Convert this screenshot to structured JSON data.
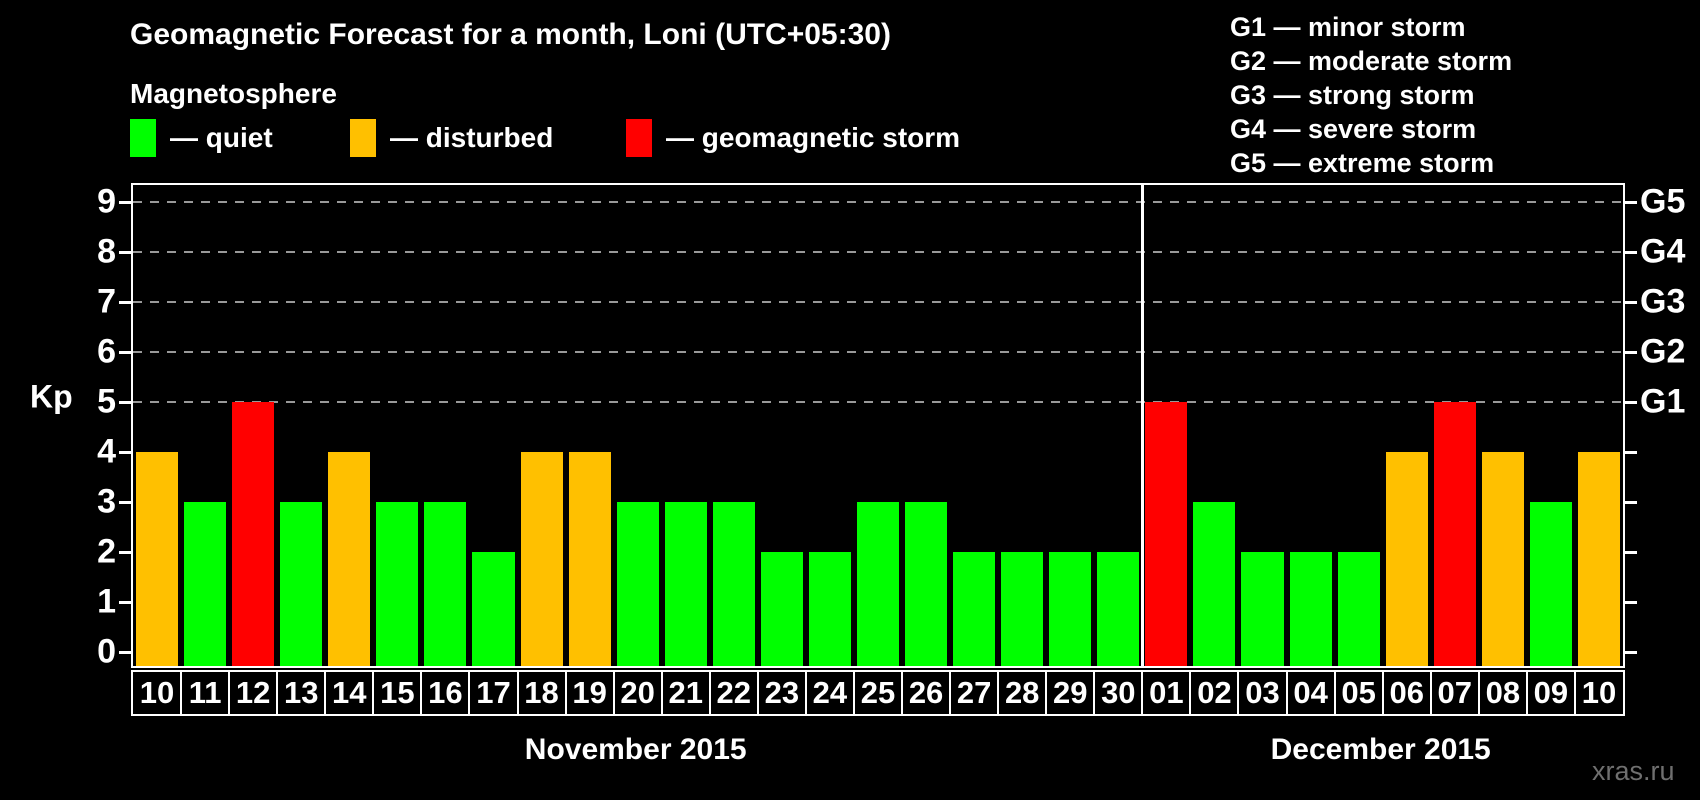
{
  "title": "Geomagnetic Forecast for a month, Loni (UTC+05:30)",
  "subtitle": "Magnetosphere",
  "legend": {
    "items": [
      {
        "label": "— quiet",
        "status": "quiet",
        "color": "#00FF00"
      },
      {
        "label": "— disturbed",
        "status": "disturbed",
        "color": "#FFC000"
      },
      {
        "label": "— geomagnetic storm",
        "status": "storm",
        "color": "#FF0000"
      }
    ]
  },
  "storm_scale_legend": [
    "G1 — minor storm",
    "G2 — moderate storm",
    "G3 — strong storm",
    "G4 — severe storm",
    "G5 — extreme storm"
  ],
  "watermark": "xras.ru",
  "chart_data": {
    "type": "bar",
    "ylabel": "Kp",
    "ylim": [
      0,
      9
    ],
    "y_ticks": [
      0,
      1,
      2,
      3,
      4,
      5,
      6,
      7,
      8,
      9
    ],
    "gridlines_at": [
      5,
      6,
      7,
      8,
      9
    ],
    "right_axis_labels": [
      {
        "label": "G1",
        "level": 5
      },
      {
        "label": "G2",
        "level": 6
      },
      {
        "label": "G3",
        "level": 7
      },
      {
        "label": "G4",
        "level": 8
      },
      {
        "label": "G5",
        "level": 9
      }
    ],
    "months": [
      {
        "label": "November 2015",
        "days": 21
      },
      {
        "label": "December 2015",
        "days": 10
      }
    ],
    "categories": [
      "10",
      "11",
      "12",
      "13",
      "14",
      "15",
      "16",
      "17",
      "18",
      "19",
      "20",
      "21",
      "22",
      "23",
      "24",
      "25",
      "26",
      "27",
      "28",
      "29",
      "30",
      "01",
      "02",
      "03",
      "04",
      "05",
      "06",
      "07",
      "08",
      "09",
      "10"
    ],
    "values": [
      4,
      3,
      5,
      3,
      4,
      3,
      3,
      2,
      4,
      4,
      3,
      3,
      3,
      2,
      2,
      3,
      3,
      2,
      2,
      2,
      2,
      5,
      3,
      2,
      2,
      2,
      4,
      5,
      4,
      3,
      4
    ],
    "statuses": [
      "disturbed",
      "quiet",
      "storm",
      "quiet",
      "disturbed",
      "quiet",
      "quiet",
      "quiet",
      "disturbed",
      "disturbed",
      "quiet",
      "quiet",
      "quiet",
      "quiet",
      "quiet",
      "quiet",
      "quiet",
      "quiet",
      "quiet",
      "quiet",
      "quiet",
      "storm",
      "quiet",
      "quiet",
      "quiet",
      "quiet",
      "disturbed",
      "storm",
      "disturbed",
      "quiet",
      "disturbed"
    ],
    "colors": {
      "quiet": "#00FF00",
      "disturbed": "#FFC000",
      "storm": "#FF0000"
    },
    "grid_color": "#999999"
  }
}
